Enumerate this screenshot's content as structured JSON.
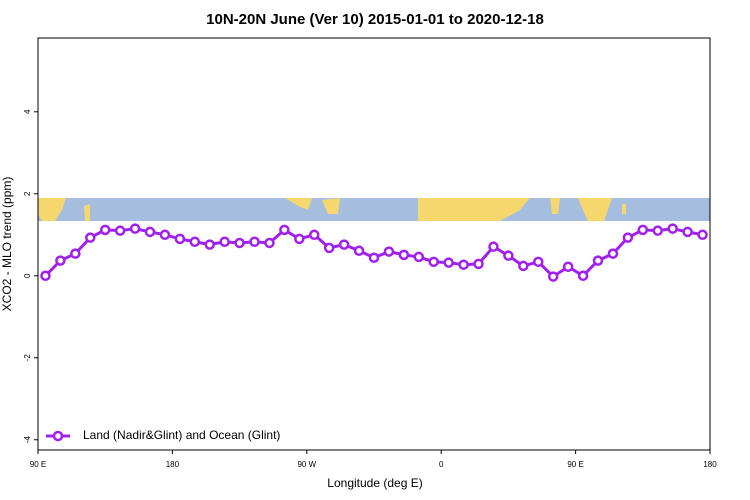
{
  "chart_data": {
    "type": "line",
    "title": "10N-20N June (Ver 10)   2015-01-01 to 2020-12-18",
    "xlabel": "Longitude (deg E)",
    "ylabel": "XCO2 - MLO trend (ppm)",
    "x": [
      95,
      105,
      115,
      125,
      135,
      145,
      155,
      165,
      175,
      185,
      195,
      205,
      215,
      225,
      235,
      245,
      255,
      265,
      275,
      285,
      295,
      305,
      315,
      325,
      335,
      345,
      355,
      365,
      375,
      385,
      395,
      405,
      415,
      425,
      435,
      445,
      455,
      465,
      475,
      485,
      495,
      505,
      515,
      525,
      535
    ],
    "series": [
      {
        "name": "Land (Nadir&Glint) and Ocean (Glint)",
        "color": "#a020f0",
        "values": [
          0.0,
          0.37,
          0.54,
          0.93,
          1.12,
          1.1,
          1.15,
          1.07,
          1.0,
          0.9,
          0.83,
          0.76,
          0.83,
          0.8,
          0.83,
          0.8,
          1.12,
          0.9,
          1.0,
          0.68,
          0.76,
          0.61,
          0.44,
          0.59,
          0.51,
          0.46,
          0.34,
          0.32,
          0.27,
          0.29,
          0.71,
          0.49,
          0.24,
          0.34,
          -0.02,
          0.22,
          0.0,
          0.37,
          0.54,
          0.93,
          1.12,
          1.1,
          1.15,
          1.07,
          1.0
        ]
      }
    ],
    "xlim": [
      90,
      540
    ],
    "xticks": [
      {
        "value": 90,
        "label": "90 E"
      },
      {
        "value": 180,
        "label": "180"
      },
      {
        "value": 270,
        "label": "90 W"
      },
      {
        "value": 360,
        "label": "0"
      },
      {
        "value": 450,
        "label": "90 E"
      },
      {
        "value": 540,
        "label": "180"
      }
    ],
    "ylim": [
      -4.25,
      5.8
    ],
    "yticks": [
      -4,
      -2,
      0,
      2,
      4
    ],
    "legend": "bottom-left"
  }
}
